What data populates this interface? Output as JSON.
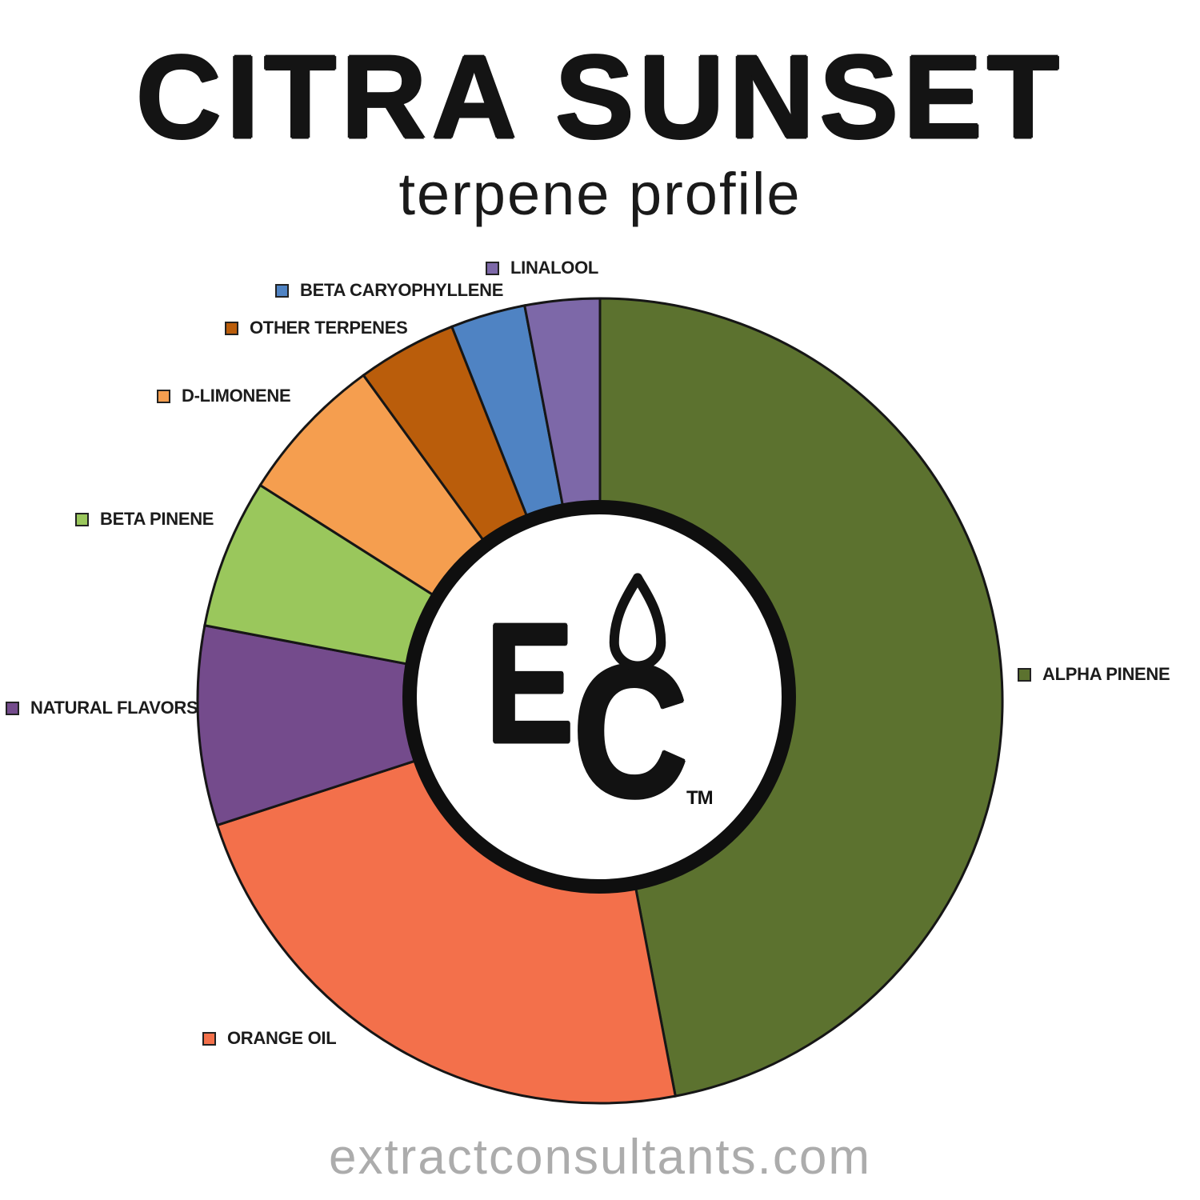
{
  "header": {
    "title": "CITRA SUNSET",
    "subtitle": "terpene profile"
  },
  "footer": {
    "website": "extractconsultants.com"
  },
  "logo": {
    "letter_e": "E",
    "letter_c": "C",
    "trademark": "TM"
  },
  "chart_data": {
    "type": "pie",
    "title": "CITRA SUNSET terpene profile",
    "donut": true,
    "start_angle_deg": 0,
    "direction": "clockwise",
    "legend_position": "around",
    "values_labeled_on_chart": false,
    "series": [
      {
        "label": "ALPHA PINENE",
        "value_pct": 47,
        "color": "#5C722F"
      },
      {
        "label": "ORANGE OIL",
        "value_pct": 23,
        "color": "#F3704B"
      },
      {
        "label": "NATURAL FLAVORS",
        "value_pct": 8,
        "color": "#744B8C"
      },
      {
        "label": "BETA PINENE",
        "value_pct": 6,
        "color": "#9AC75C"
      },
      {
        "label": "D-LIMONENE",
        "value_pct": 6,
        "color": "#F59E4F"
      },
      {
        "label": "OTHER TERPENES",
        "value_pct": 4,
        "color": "#BA5D0B"
      },
      {
        "label": "BETA CARYOPHYLLENE",
        "value_pct": 3,
        "color": "#4F83C3"
      },
      {
        "label": "LINALOOL",
        "value_pct": 3,
        "color": "#7D68A8"
      }
    ],
    "outline_color": "#161616"
  }
}
